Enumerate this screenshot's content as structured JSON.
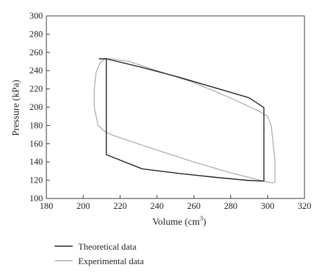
{
  "chart_data": {
    "type": "line",
    "xlabel": "Volume (cm",
    "xlabel_sup": "3",
    "xlabel_close": ")",
    "ylabel": "Pressure (kPa)",
    "xlim": [
      180,
      320
    ],
    "ylim": [
      100,
      300
    ],
    "xticks": [
      180,
      200,
      220,
      240,
      260,
      280,
      300,
      320
    ],
    "yticks": [
      100,
      120,
      140,
      160,
      180,
      200,
      220,
      240,
      260,
      280,
      300
    ],
    "grid": false,
    "legend_position": "bottom-left",
    "series": [
      {
        "name": "Theoretical data",
        "color": "#1a1a1a",
        "style": "solid",
        "x": [
          208.5,
          212.5,
          232,
          252,
          272,
          290,
          298,
          298,
          290,
          272,
          252,
          232,
          212.5,
          212.5
        ],
        "y": [
          253,
          253,
          243.5,
          232.8,
          221,
          210.3,
          199.5,
          119,
          119.7,
          123.1,
          127.4,
          132.4,
          148,
          253
        ]
      },
      {
        "name": "Experimental data",
        "color": "#aaaaaa",
        "style": "solid",
        "x": [
          212,
          215,
          225,
          240,
          260,
          280,
          295,
          300,
          302,
          303,
          304,
          304,
          303,
          300,
          296,
          280,
          260,
          240,
          225,
          215,
          212,
          208,
          206,
          206,
          207,
          209,
          211,
          212
        ],
        "y": [
          253,
          253,
          250,
          240,
          227,
          210,
          196,
          190,
          180,
          160,
          140,
          118,
          117,
          118,
          120,
          128,
          140,
          153,
          163,
          170,
          173,
          180,
          200,
          220,
          238,
          248,
          252,
          253
        ]
      }
    ]
  }
}
